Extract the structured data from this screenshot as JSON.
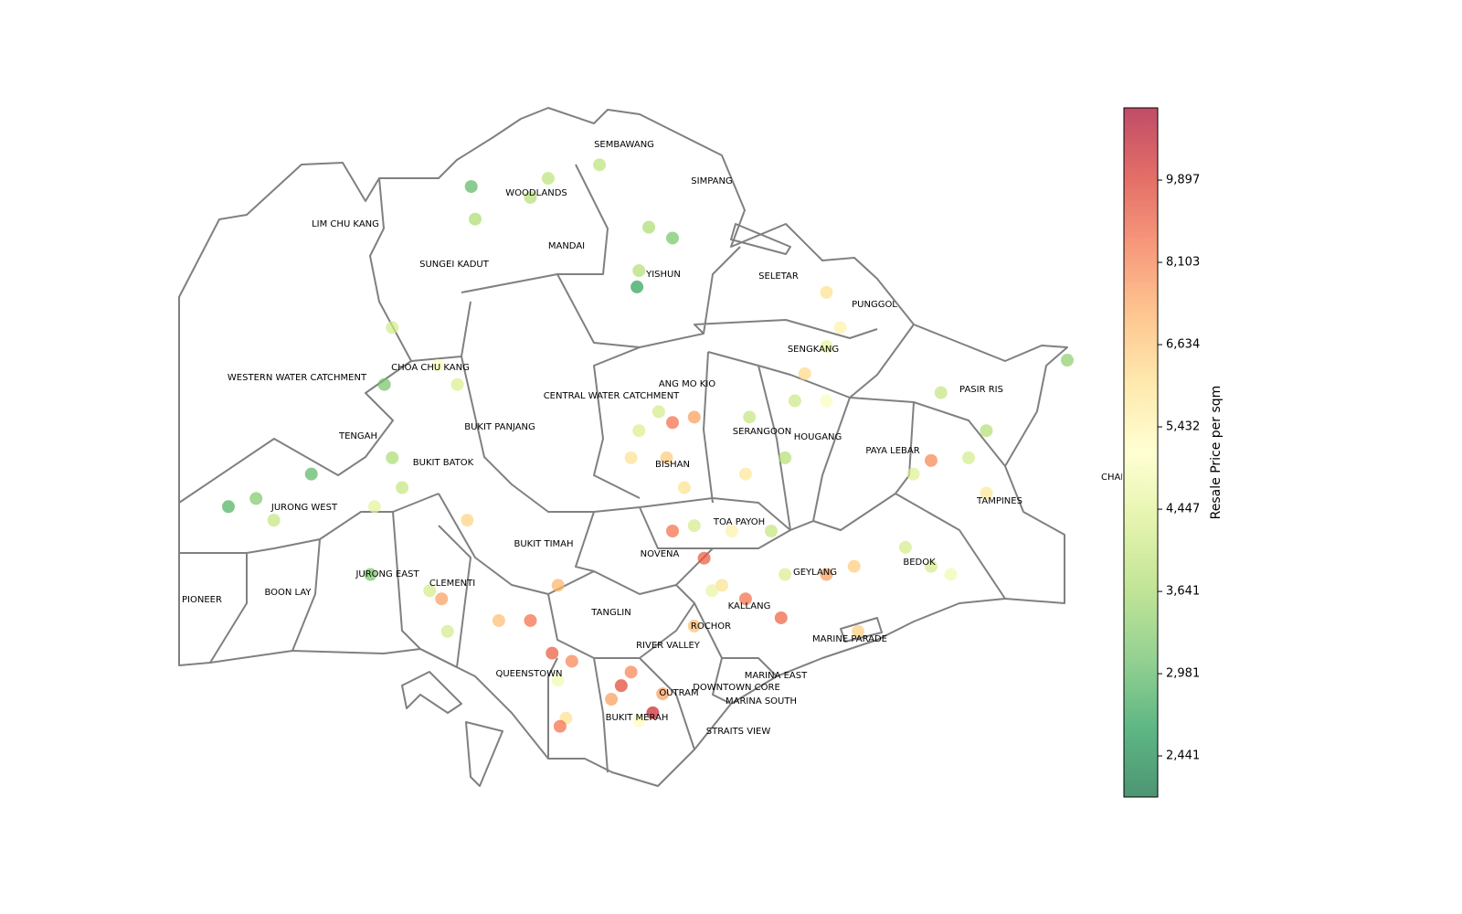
{
  "map": {
    "regions": [
      "SEMBAWANG",
      "WOODLANDS",
      "SIMPANG",
      "LIM CHU KANG",
      "MANDAI",
      "SUNGEI KADUT",
      "YISHUN",
      "SELETAR",
      "PUNGGOL",
      "SENGKANG",
      "CHOA CHU KANG",
      "WESTERN WATER CATCHMENT",
      "ANG MO KIO",
      "PASIR RIS",
      "CENTRAL WATER CATCHMENT",
      "BUKIT PANJANG",
      "SERANGOON",
      "HOUGANG",
      "TENGAH",
      "PAYA LEBAR",
      "BUKIT BATOK",
      "BISHAN",
      "CHAN",
      "TAMPINES",
      "JURONG WEST",
      "TOA PAYOH",
      "BUKIT TIMAH",
      "NOVENA",
      "BEDOK",
      "GEYLANG",
      "JURONG EAST",
      "CLEMENTI",
      "BOON LAY",
      "PIONEER",
      "KALLANG",
      "TANGLIN",
      "ROCHOR",
      "MARINE PARADE",
      "RIVER VALLEY",
      "QUEENSTOWN",
      "MARINA EAST",
      "DOWNTOWN CORE",
      "OUTRAM",
      "MARINA SOUTH",
      "BUKIT MERAH",
      "STRAITS VIEW"
    ],
    "points": {
      "lon": [
        103.778,
        103.748,
        103.75,
        103.787,
        103.813,
        103.838,
        103.85,
        103.833,
        103.832,
        103.708,
        103.704,
        103.741,
        103.731,
        103.625,
        103.639,
        103.667,
        103.648,
        103.699,
        103.708,
        103.713,
        103.697,
        103.727,
        103.733,
        103.736,
        103.746,
        103.762,
        103.778,
        103.789,
        103.799,
        103.792,
        103.796,
        103.793,
        103.824,
        103.819,
        103.84,
        103.833,
        103.829,
        103.792,
        103.843,
        103.861,
        103.85,
        103.833,
        103.847,
        103.856,
        103.829,
        103.889,
        103.887,
        103.912,
        103.907,
        103.928,
        103.928,
        103.917,
        103.935,
        103.928,
        103.85,
        103.861,
        103.88,
        103.9,
        103.866,
        103.875,
        103.887,
        103.87,
        103.907,
        103.928,
        103.905,
        103.861,
        103.944,
        103.968,
        103.981,
        103.942,
        103.991,
        104.0,
        103.981,
        104.009,
        103.972,
        103.986,
        104.009,
        104.05,
        103.845
      ],
      "lat": [
        1.437,
        1.441,
        1.429,
        1.444,
        1.449,
        1.426,
        1.422,
        1.41,
        1.404,
        1.389,
        1.368,
        1.368,
        1.375,
        1.323,
        1.326,
        1.335,
        1.318,
        1.323,
        1.341,
        1.33,
        1.298,
        1.292,
        1.289,
        1.277,
        1.318,
        1.281,
        1.281,
        1.269,
        1.266,
        1.259,
        1.245,
        1.242,
        1.257,
        1.252,
        1.247,
        1.244,
        1.262,
        1.294,
        1.358,
        1.356,
        1.354,
        1.351,
        1.341,
        1.33,
        1.341,
        1.356,
        1.335,
        1.362,
        1.341,
        1.362,
        1.382,
        1.372,
        1.389,
        1.402,
        1.314,
        1.316,
        1.314,
        1.314,
        1.304,
        1.294,
        1.289,
        1.292,
        1.298,
        1.298,
        1.282,
        1.279,
        1.277,
        1.308,
        1.301,
        1.301,
        1.298,
        1.341,
        1.34,
        1.328,
        1.335,
        1.365,
        1.351,
        1.377,
        1.254
      ],
      "values": [
        3800,
        3000,
        3700,
        3900,
        3900,
        3700,
        3200,
        3800,
        2700,
        4200,
        3200,
        4300,
        5000,
        2900,
        3300,
        3000,
        4000,
        4500,
        3700,
        4000,
        3200,
        4200,
        7500,
        4200,
        6300,
        6800,
        8500,
        9000,
        8000,
        4800,
        6000,
        8500,
        9500,
        7500,
        10500,
        5200,
        8000,
        7000,
        4200,
        7500,
        8500,
        4300,
        6500,
        6000,
        6000,
        4000,
        5800,
        4100,
        3800,
        5000,
        4500,
        6200,
        5500,
        6000,
        8500,
        4200,
        5500,
        4000,
        9000,
        6000,
        8500,
        4600,
        4300,
        7500,
        8800,
        6800,
        6400,
        4200,
        4200,
        6500,
        4800,
        4200,
        8000,
        5800,
        4400,
        4000,
        3800,
        3400,
        7500
      ]
    },
    "colorbar": {
      "label": "Resale Price per sqm",
      "scale": "log",
      "colormap": [
        "#006837",
        "#1a9850",
        "#66bd63",
        "#a6d96a",
        "#d9ef8b",
        "#ffffbf",
        "#fee08b",
        "#fdae61",
        "#f46d43",
        "#d73027",
        "#a50026"
      ],
      "alpha": 0.7,
      "clim": [
        2209,
        11797
      ],
      "ticks": [
        {
          "value": 2441,
          "label": "2,441"
        },
        {
          "value": 2981,
          "label": "2,981"
        },
        {
          "value": 3641,
          "label": "3,641"
        },
        {
          "value": 4447,
          "label": "4,447"
        },
        {
          "value": 5432,
          "label": "5,432"
        },
        {
          "value": 6634,
          "label": "6,634"
        },
        {
          "value": 8103,
          "label": "8,103"
        },
        {
          "value": 9897,
          "label": "9,897"
        }
      ]
    }
  }
}
